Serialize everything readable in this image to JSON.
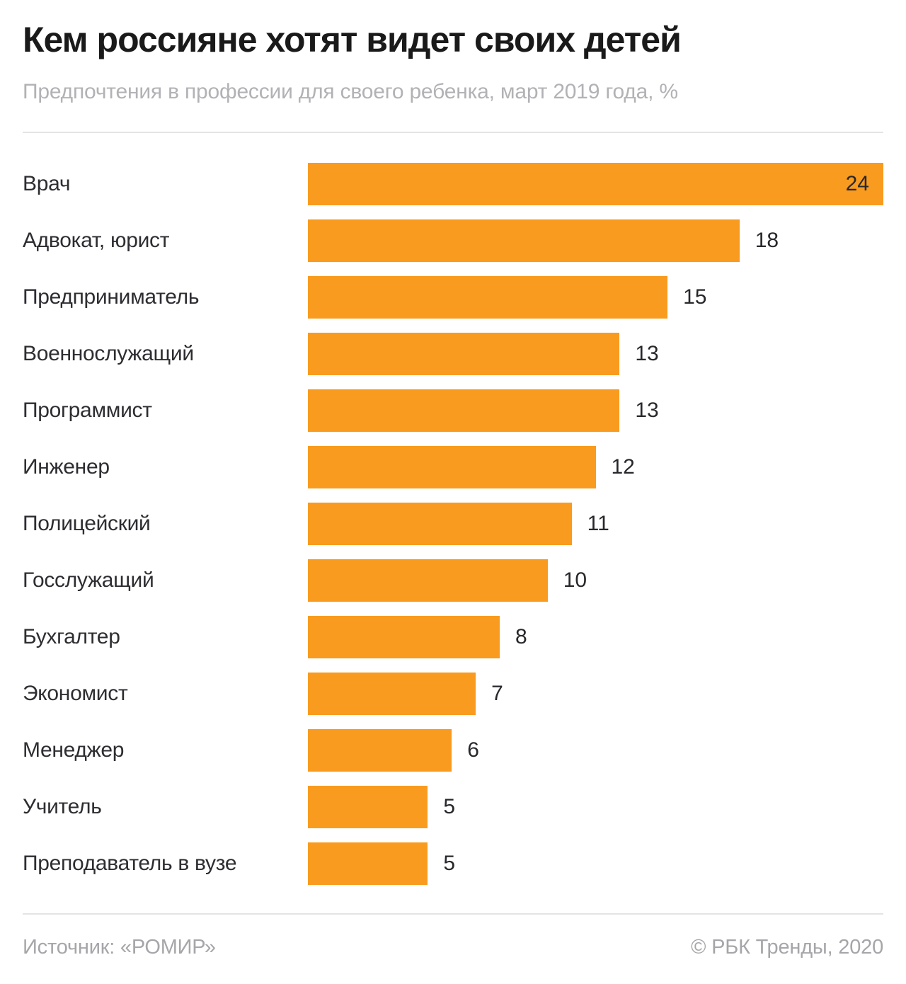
{
  "header": {
    "title": "Кем россияне хотят видет своих детей",
    "subtitle": "Предпочтения в профессии для своего ребенка, март 2019 года, %"
  },
  "chart_data": {
    "type": "bar",
    "orientation": "horizontal",
    "title": "Кем россияне хотят видет своих детей",
    "subtitle": "Предпочтения в профессии для своего ребенка, март 2019 года, %",
    "unit": "%",
    "categories": [
      "Врач",
      "Адвокат, юрист",
      "Предприниматель",
      "Военнослужащий",
      "Программист",
      "Инженер",
      "Полицейский",
      "Госслужащий",
      "Бухгалтер",
      "Экономист",
      "Менеджер",
      "Учитель",
      "Преподаватель в вузе"
    ],
    "values": [
      24,
      18,
      15,
      13,
      13,
      12,
      11,
      10,
      8,
      7,
      6,
      5,
      5
    ],
    "xlim": [
      0,
      24
    ],
    "grid": false,
    "legend": false,
    "value_label_placement": "outside, except max value inside bar end"
  },
  "footer": {
    "source": "Источник: «РОМИР»",
    "copyright": "© РБК Тренды, 2020"
  },
  "colors": {
    "bar": "#F99B1E",
    "title_text": "#1a1a1a",
    "label_text": "#2d2d32",
    "subtitle_text": "#b2b2b6",
    "footer_text": "#a6a6aa",
    "divider": "#e4e4e6",
    "background": "#ffffff"
  }
}
